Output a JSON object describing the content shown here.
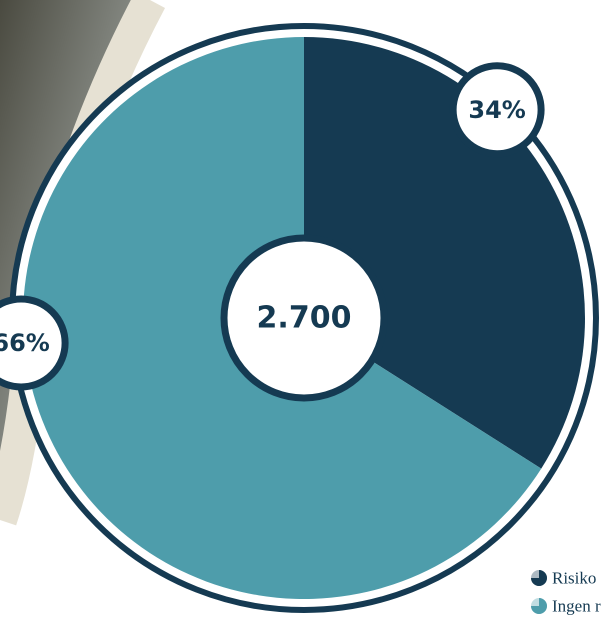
{
  "chart_data": {
    "type": "pie",
    "center_label": "2.700",
    "categories": [
      "Risiko",
      "Ingen r"
    ],
    "values": [
      34,
      66
    ],
    "value_labels": [
      "34%",
      "66%"
    ],
    "colors": [
      "#153a52",
      "#4e9dab"
    ]
  }
}
